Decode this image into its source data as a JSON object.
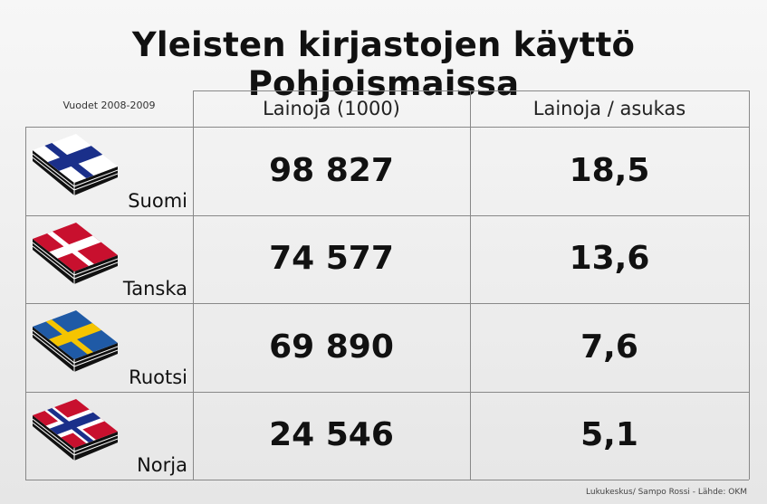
{
  "title": "Yleisten kirjastojen käyttö Pohjoismaissa",
  "note": "Vuodet 2008-2009",
  "table": {
    "header": [
      "Lainoja (1000)",
      "Lainoja / asukas"
    ],
    "rows": [
      [
        "Suomi",
        "98 827",
        "18,5"
      ],
      [
        "Tanska",
        "74 577",
        "13,6"
      ],
      [
        "Ruotsi",
        "69 890",
        "7,6"
      ],
      [
        "Norja",
        "24 546",
        "5,1"
      ]
    ]
  },
  "source": "Lukukeskus/ Sampo Rossi - Lähde: OKM"
}
